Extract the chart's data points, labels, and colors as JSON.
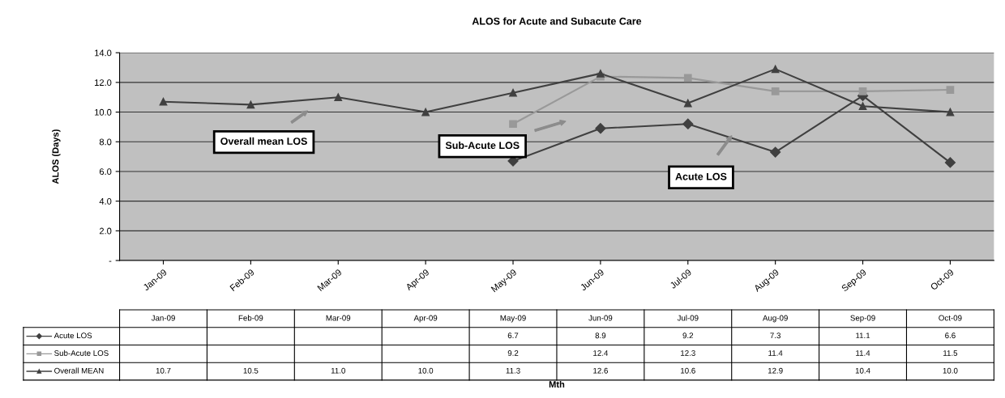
{
  "chart_data": {
    "type": "line",
    "title": "ALOS for Acute and Subacute Care",
    "ylabel": "ALOS (Days)",
    "categories": [
      "Jan-09",
      "Feb-09",
      "Mar-09",
      "Apr-09",
      "May-09",
      "Jun-09",
      "Jul-09",
      "Aug-09",
      "Sep-09",
      "Oct-09"
    ],
    "series": [
      {
        "name": "Acute LOS",
        "color": "#404040",
        "marker": "diamond",
        "values": [
          null,
          null,
          null,
          null,
          6.7,
          8.9,
          9.2,
          7.3,
          11.1,
          6.6
        ],
        "value_labels": [
          null,
          null,
          null,
          null,
          "6.7",
          "8.9",
          "9.2",
          "7.3",
          "11.1",
          "6.6"
        ]
      },
      {
        "name": "Sub-Acute LOS",
        "color": "#999999",
        "marker": "square",
        "values": [
          null,
          null,
          null,
          null,
          9.2,
          12.4,
          12.3,
          11.4,
          11.4,
          11.5
        ],
        "value_labels": [
          null,
          null,
          null,
          null,
          "9.2",
          "12.4",
          "12.3",
          "11.4",
          "11.4",
          "11.5"
        ]
      },
      {
        "name": "Overall MEAN",
        "color": "#404040",
        "marker": "triangle",
        "values": [
          10.7,
          10.5,
          11.0,
          10.0,
          11.3,
          12.6,
          10.6,
          12.9,
          10.4,
          10.0
        ],
        "value_labels": [
          "10.7",
          "10.5",
          "11.0",
          "10.0",
          "11.3",
          "12.6",
          "10.6",
          "12.9",
          "10.4",
          "10.0"
        ]
      }
    ],
    "ylim": [
      0,
      14
    ],
    "yticks": [
      {
        "value": 0,
        "label": "-"
      },
      {
        "value": 2,
        "label": "2.0"
      },
      {
        "value": 4,
        "label": "4.0"
      },
      {
        "value": 6,
        "label": "6.0"
      },
      {
        "value": 8,
        "label": "8.0"
      },
      {
        "value": 10,
        "label": "10.0"
      },
      {
        "value": 12,
        "label": "12.0"
      },
      {
        "value": 14,
        "label": "14.0"
      }
    ],
    "grid": "y",
    "legend": "bottom left",
    "line_style": "solid",
    "annotations": [
      "Overall mean LOS",
      "Sub-Acute LOS",
      "Acute LOS",
      "Mth"
    ]
  }
}
